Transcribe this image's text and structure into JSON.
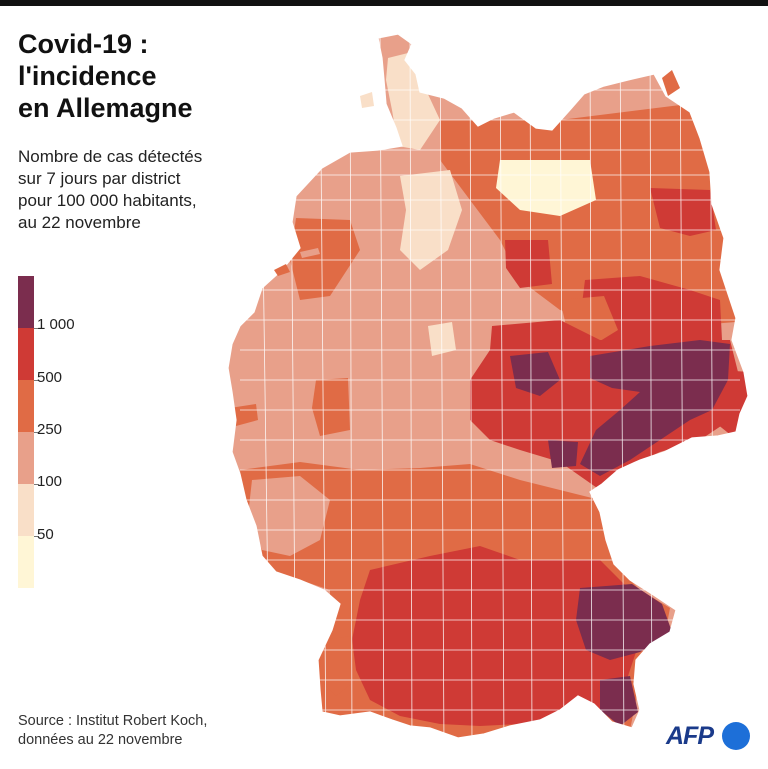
{
  "title": {
    "line1": "Covid-19 :",
    "line2": "l'incidence",
    "line3": "en Allemagne"
  },
  "subtitle": {
    "line1": "Nombre de cas détectés",
    "line2": "sur 7 jours par district",
    "line3": "pour 100 000 habitants,",
    "line4": "au 22 novembre"
  },
  "legend": {
    "labels": [
      "1 000",
      "500",
      "250",
      "100",
      "50"
    ],
    "colors": [
      "#7b2d4e",
      "#cf3a35",
      "#e06b45",
      "#e8a08a",
      "#f9dfc8",
      "#fff6d6"
    ]
  },
  "source": {
    "line1": "Source : Institut Robert Koch,",
    "line2": "données au 22 novembre"
  },
  "logo": {
    "text": "AFP"
  },
  "palette": {
    "border": "#ffffff",
    "bar": "#111111",
    "afp_blue": "#1a3a8a",
    "afp_dot": "#1d6fd8"
  }
}
